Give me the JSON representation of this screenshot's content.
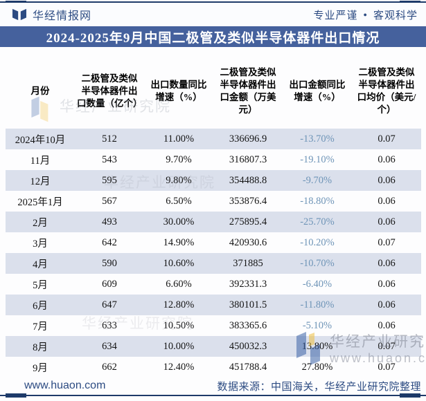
{
  "topbar": {
    "site_name": "华经情报网",
    "slogan_left": "专业严谨",
    "slogan_dot": "●",
    "slogan_right": "客观科学"
  },
  "title": "2024-2025年9月中国二极管及类似半导体器件出口情况",
  "chart_data": {
    "type": "table",
    "columns": [
      "月份",
      "二极管及类似半导体器件出口数量（亿个）",
      "出口数量同比增速（%）",
      "二极管及类似半导体器件出口金额（万美元）",
      "出口金额同比增速（%）",
      "二极管及类似半导体器件出口均价（美元/个）"
    ],
    "rows": [
      [
        "2024年10月",
        "512",
        "11.00%",
        "336696.9",
        "-13.70%",
        "0.07"
      ],
      [
        "11月",
        "543",
        "9.70%",
        "316807.3",
        "-19.10%",
        "0.06"
      ],
      [
        "12月",
        "595",
        "9.80%",
        "354488.8",
        "-9.70%",
        "0.06"
      ],
      [
        "2025年1月",
        "567",
        "6.50%",
        "353876.4",
        "-18.80%",
        "0.06"
      ],
      [
        "2月",
        "493",
        "30.00%",
        "275895.4",
        "-25.70%",
        "0.06"
      ],
      [
        "3月",
        "642",
        "14.90%",
        "420930.6",
        "-10.20%",
        "0.07"
      ],
      [
        "4月",
        "590",
        "10.60%",
        "371885",
        "-10.70%",
        "0.06"
      ],
      [
        "5月",
        "609",
        "6.60%",
        "392331.3",
        "-6.40%",
        "0.06"
      ],
      [
        "6月",
        "647",
        "12.80%",
        "380101.5",
        "-11.80%",
        "0.06"
      ],
      [
        "7月",
        "633",
        "10.50%",
        "383365.6",
        "-5.10%",
        "0.06"
      ],
      [
        "8月",
        "634",
        "10.00%",
        "450032.3",
        "13.80%",
        "0.07"
      ],
      [
        "9月",
        "662",
        "12.40%",
        "451788.4",
        "27.80%",
        "0.07"
      ]
    ]
  },
  "footer": {
    "website": "www.huaon.com",
    "source": "数据来源：中国海关，华经产业研究院整理"
  },
  "watermarks": {
    "org": "华经产业研究院",
    "url": "www.huaon.com"
  },
  "colors": {
    "accent_navy": "#1d3a69",
    "title_bar_blue": "#45619d",
    "row_stripe": "#dbe0ec",
    "negative_value": "#6e94b7",
    "brand_text": "#2c4b82"
  }
}
